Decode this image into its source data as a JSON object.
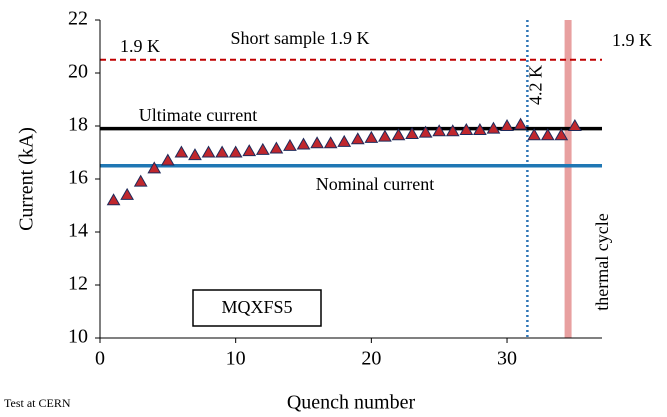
{
  "chart_data": {
    "type": "scatter",
    "xlabel": "Quench number",
    "ylabel": "Current (kA)",
    "x": [
      1,
      2,
      3,
      4,
      5,
      6,
      7,
      8,
      9,
      10,
      11,
      12,
      13,
      14,
      15,
      16,
      17,
      18,
      19,
      20,
      21,
      22,
      23,
      24,
      25,
      26,
      27,
      28,
      29,
      30,
      31,
      32,
      33,
      34,
      35
    ],
    "values": [
      15.2,
      15.4,
      15.9,
      16.4,
      16.7,
      17.0,
      16.9,
      17.0,
      17.0,
      17.0,
      17.05,
      17.1,
      17.15,
      17.25,
      17.3,
      17.35,
      17.35,
      17.4,
      17.5,
      17.55,
      17.6,
      17.65,
      17.7,
      17.75,
      17.8,
      17.8,
      17.85,
      17.85,
      17.9,
      18.0,
      18.05,
      17.65,
      17.65,
      17.65,
      18.0
    ],
    "color": "#c0272d",
    "xlim": [
      0,
      37
    ],
    "ylim": [
      10,
      22
    ],
    "xticks": [
      0,
      10,
      20,
      30
    ],
    "yticks": [
      10,
      12,
      14,
      16,
      18,
      20,
      22
    ],
    "hlines": [
      {
        "label": "Short sample 1.9 K",
        "value": 20.5,
        "color": "#c00000",
        "style": "dashed"
      },
      {
        "label": "Ultimate current",
        "value": 17.9,
        "color": "#000000",
        "style": "solid"
      },
      {
        "label": "Nominal current",
        "value": 16.5,
        "color": "#1f77b4",
        "style": "solid"
      }
    ],
    "vlines": [
      {
        "label": "4.2 K",
        "value": 31.5,
        "color": "#2e75b6",
        "style": "dotted"
      },
      {
        "label": "thermal cycle",
        "value": 34.5,
        "color": "#e8a0a0",
        "style": "band"
      }
    ],
    "annotations": [
      "1.9 K",
      "1.9 K"
    ],
    "box_label": "MQXFS5",
    "footnote": "Test at CERN"
  }
}
